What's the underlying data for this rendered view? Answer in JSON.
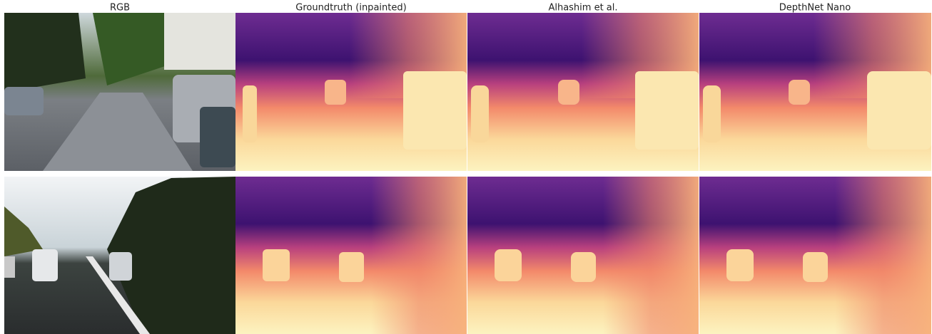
{
  "columns": [
    "RGB",
    "Groundtruth (inpainted)",
    "Alhashim et al.",
    "DepthNet Nano"
  ]
}
